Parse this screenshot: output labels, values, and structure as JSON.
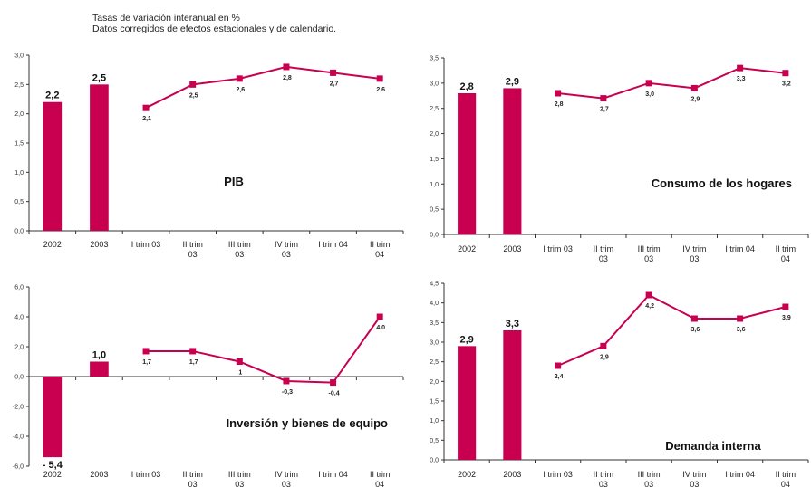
{
  "header": {
    "line1": "Tasas de variación   interanual  en %",
    "line2": "Datos corregidos de efectos estacionales y de calendario."
  },
  "colors": {
    "bar": "#c8004f",
    "line": "#c8004f",
    "marker": "#c8004f",
    "axis": "#333333"
  },
  "chart_data": [
    {
      "type": "bar+line",
      "title": "PIB",
      "categories": [
        "2002",
        "2003",
        "I trim 03",
        "II trim 03",
        "III trim 03",
        "IV trim 03",
        "I trim 04",
        "II trim 04"
      ],
      "bars": {
        "values": [
          2.2,
          2.5
        ],
        "labels": [
          "2,2",
          "2,5"
        ]
      },
      "line": {
        "values": [
          2.1,
          2.5,
          2.6,
          2.8,
          2.7,
          2.6
        ],
        "labels": [
          "2,1",
          "2,5",
          "2,6",
          "2,8",
          "2,7",
          "2,6"
        ]
      },
      "ylim": [
        0,
        3
      ],
      "yticks": [
        "0,0",
        "0,5",
        "1,0",
        "1,5",
        "2,0",
        "2,5",
        "3,0"
      ],
      "grid": false
    },
    {
      "type": "bar+line",
      "title": "Consumo de los hogares",
      "categories": [
        "2002",
        "2003",
        "I trim 03",
        "II trim 03",
        "III trim 03",
        "IV trim 03",
        "I trim 04",
        "II trim 04"
      ],
      "bars": {
        "values": [
          2.8,
          2.9
        ],
        "labels": [
          "2,8",
          "2,9"
        ]
      },
      "line": {
        "values": [
          2.8,
          2.7,
          3.0,
          2.9,
          3.3,
          3.2
        ],
        "labels": [
          "2,8",
          "2,7",
          "3,0",
          "2,9",
          "3,3",
          "3,2"
        ]
      },
      "ylim": [
        0,
        3.5
      ],
      "yticks": [
        "0,0",
        "0,5",
        "1,0",
        "1,5",
        "2,0",
        "2,5",
        "3,0",
        "3,5"
      ],
      "grid": false
    },
    {
      "type": "bar+line",
      "title": "Inversión y bienes de equipo",
      "categories": [
        "2002",
        "2003",
        "I trim 03",
        "II trim 03",
        "III trim 03",
        "IV trim 03",
        "I trim 04",
        "II trim 04"
      ],
      "bars": {
        "values": [
          -5.4,
          1.0
        ],
        "labels": [
          "- 5,4",
          "1,0"
        ]
      },
      "line": {
        "values": [
          1.7,
          1.7,
          1.0,
          -0.3,
          -0.4,
          4.0
        ],
        "labels": [
          "1,7",
          "1,7",
          "1",
          "-0,3",
          "-0,4",
          "4,0"
        ]
      },
      "ylim": [
        -6,
        6
      ],
      "yticks": [
        "-6,0",
        "-4,0",
        "-2,0",
        "0,0",
        "2,0",
        "4,0",
        "6,0"
      ],
      "grid": false
    },
    {
      "type": "bar+line",
      "title": "Demanda interna",
      "categories": [
        "2002",
        "2003",
        "I trim 03",
        "II trim 03",
        "III trim 03",
        "IV trim 03",
        "I trim 04",
        "II trim 04"
      ],
      "bars": {
        "values": [
          2.9,
          3.3
        ],
        "labels": [
          "2,9",
          "3,3"
        ]
      },
      "line": {
        "values": [
          2.4,
          2.9,
          4.2,
          3.6,
          3.6,
          3.9
        ],
        "labels": [
          "2,4",
          "2,9",
          "4,2",
          "3,6",
          "3,6",
          "3,9"
        ]
      },
      "ylim": [
        0,
        4.5
      ],
      "yticks": [
        "0,0",
        "0,5",
        "1,0",
        "1,5",
        "2,0",
        "2,5",
        "3,0",
        "3,5",
        "4,0",
        "4,5"
      ],
      "grid": false
    }
  ]
}
